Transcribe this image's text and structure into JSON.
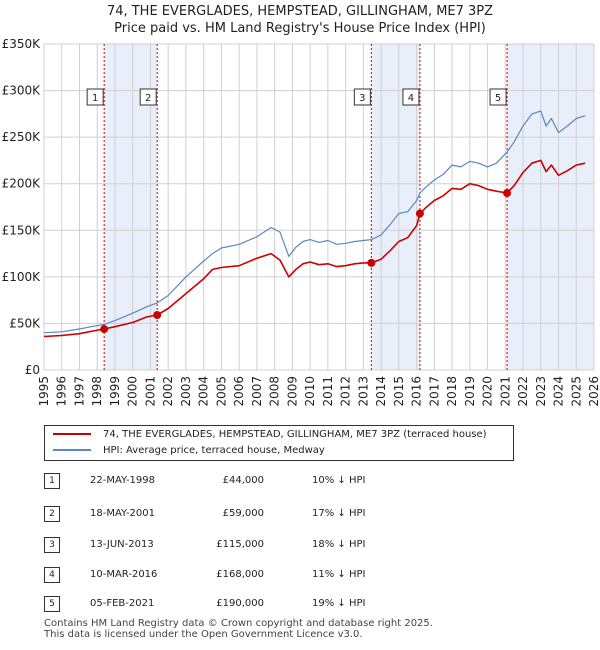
{
  "title_line1": "74, THE EVERGLADES, HEMPSTEAD, GILLINGHAM, ME7 3PZ",
  "title_line2": "Price paid vs. HM Land Registry's House Price Index (HPI)",
  "colors": {
    "price_paid": "#cc0000",
    "hpi": "#5b87c7",
    "shade": "#e8eefa",
    "grid": "#d0d0d0"
  },
  "chart_data": {
    "type": "line",
    "ylabel_ticks": [
      "£0",
      "£50K",
      "£100K",
      "£150K",
      "£200K",
      "£250K",
      "£300K",
      "£350K"
    ],
    "ylim": [
      0,
      350000
    ],
    "xlim": [
      1995,
      2026
    ],
    "x_ticks": [
      1995,
      1996,
      1997,
      1998,
      1999,
      2000,
      2001,
      2002,
      2003,
      2004,
      2005,
      2006,
      2007,
      2008,
      2009,
      2010,
      2011,
      2012,
      2013,
      2014,
      2015,
      2016,
      2017,
      2018,
      2019,
      2020,
      2021,
      2022,
      2023,
      2024,
      2025,
      2026
    ],
    "shaded_ranges": [
      [
        1998.39,
        2001.38
      ],
      [
        2013.45,
        2016.19
      ],
      [
        2021.1,
        2026
      ]
    ],
    "series": [
      {
        "name": "74, THE EVERGLADES, HEMPSTEAD, GILLINGHAM, ME7 3PZ (terraced house)",
        "color": "#cc0000",
        "x": [
          1995.0,
          1996.0,
          1997.0,
          1997.8,
          1998.39,
          1999.0,
          2000.0,
          2000.8,
          2001.38,
          2002.0,
          2003.0,
          2004.0,
          2004.5,
          2005.0,
          2006.0,
          2007.0,
          2007.8,
          2008.3,
          2008.8,
          2009.2,
          2009.6,
          2010.0,
          2010.5,
          2011.0,
          2011.5,
          2012.0,
          2012.5,
          2013.0,
          2013.45,
          2014.0,
          2014.5,
          2015.0,
          2015.5,
          2016.0,
          2016.19,
          2016.5,
          2017.0,
          2017.5,
          2018.0,
          2018.5,
          2019.0,
          2019.5,
          2020.0,
          2020.5,
          2021.1,
          2021.5,
          2022.0,
          2022.5,
          2023.0,
          2023.3,
          2023.6,
          2024.0,
          2024.5,
          2025.0,
          2025.5
        ],
        "values": [
          36000,
          37000,
          39000,
          42000,
          44000,
          46500,
          51000,
          57000,
          59000,
          66000,
          82000,
          98000,
          108000,
          110000,
          112000,
          120000,
          125000,
          118000,
          100000,
          108000,
          114000,
          116000,
          113000,
          114000,
          111000,
          112000,
          114000,
          115000,
          115000,
          119000,
          128000,
          138000,
          142000,
          155000,
          168000,
          174000,
          182000,
          187000,
          195000,
          194000,
          200000,
          198000,
          194000,
          192000,
          190000,
          198000,
          212000,
          222000,
          225000,
          213000,
          220000,
          209000,
          214000,
          220000,
          222000
        ]
      },
      {
        "name": "HPI: Average price, terraced house, Medway",
        "color": "#5b87c7",
        "x": [
          1995.0,
          1996.0,
          1997.0,
          1997.8,
          1998.39,
          1999.0,
          2000.0,
          2000.8,
          2001.38,
          2002.0,
          2003.0,
          2004.0,
          2004.5,
          2005.0,
          2006.0,
          2007.0,
          2007.8,
          2008.3,
          2008.8,
          2009.2,
          2009.6,
          2010.0,
          2010.5,
          2011.0,
          2011.5,
          2012.0,
          2012.5,
          2013.0,
          2013.45,
          2014.0,
          2014.5,
          2015.0,
          2015.5,
          2016.0,
          2016.19,
          2016.5,
          2017.0,
          2017.5,
          2018.0,
          2018.5,
          2019.0,
          2019.5,
          2020.0,
          2020.5,
          2021.1,
          2021.5,
          2022.0,
          2022.5,
          2023.0,
          2023.3,
          2023.6,
          2024.0,
          2024.5,
          2025.0,
          2025.5
        ],
        "values": [
          40000,
          41000,
          44000,
          47000,
          49000,
          53000,
          61000,
          68000,
          72000,
          80000,
          100000,
          117000,
          125000,
          131000,
          135000,
          143000,
          153000,
          148000,
          122000,
          132000,
          138000,
          140000,
          137000,
          139000,
          135000,
          136000,
          138000,
          139000,
          140000,
          145000,
          156000,
          168000,
          170000,
          182000,
          190000,
          196000,
          204000,
          210000,
          220000,
          218000,
          224000,
          222000,
          218000,
          222000,
          234000,
          245000,
          262000,
          275000,
          278000,
          262000,
          270000,
          255000,
          262000,
          270000,
          273000
        ]
      }
    ],
    "sales": [
      {
        "num": "1",
        "x": 1998.39,
        "value": 44000
      },
      {
        "num": "2",
        "x": 2001.38,
        "value": 59000
      },
      {
        "num": "3",
        "x": 2013.45,
        "value": 115000
      },
      {
        "num": "4",
        "x": 2016.19,
        "value": 168000
      },
      {
        "num": "5",
        "x": 2021.1,
        "value": 190000
      }
    ]
  },
  "legend": {
    "price_paid_label": "74, THE EVERGLADES, HEMPSTEAD, GILLINGHAM, ME7 3PZ (terraced house)",
    "hpi_label": "HPI: Average price, terraced house, Medway"
  },
  "transactions": [
    {
      "num": "1",
      "date": "22-MAY-1998",
      "price": "£44,000",
      "hpi": "10% ↓ HPI"
    },
    {
      "num": "2",
      "date": "18-MAY-2001",
      "price": "£59,000",
      "hpi": "17% ↓ HPI"
    },
    {
      "num": "3",
      "date": "13-JUN-2013",
      "price": "£115,000",
      "hpi": "18% ↓ HPI"
    },
    {
      "num": "4",
      "date": "10-MAR-2016",
      "price": "£168,000",
      "hpi": "11% ↓ HPI"
    },
    {
      "num": "5",
      "date": "05-FEB-2021",
      "price": "£190,000",
      "hpi": "19% ↓ HPI"
    }
  ],
  "footer_line1": "Contains HM Land Registry data © Crown copyright and database right 2025.",
  "footer_line2": "This data is licensed under the Open Government Licence v3.0."
}
